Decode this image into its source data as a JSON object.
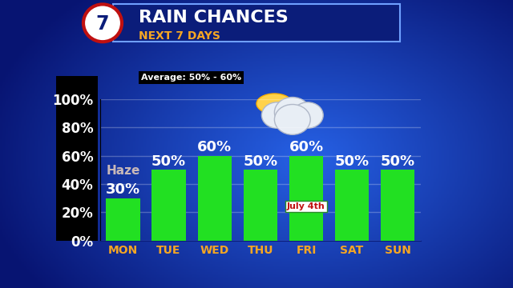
{
  "chart_data": {
    "type": "bar",
    "title": "RAIN CHANCES",
    "subtitle": "NEXT 7 DAYS",
    "categories": [
      "MON",
      "TUE",
      "WED",
      "THU",
      "FRI",
      "SAT",
      "SUN"
    ],
    "values": [
      30,
      50,
      60,
      50,
      60,
      50,
      50
    ],
    "value_labels": [
      "30%",
      "50%",
      "60%",
      "50%",
      "60%",
      "50%",
      "50%"
    ],
    "data_labels": true,
    "color": "#22e022",
    "ylim": [
      0,
      100
    ],
    "yticks": [
      {
        "value": 0,
        "label": "0%"
      },
      {
        "value": 20,
        "label": "20%"
      },
      {
        "value": 40,
        "label": "40%"
      },
      {
        "value": 60,
        "label": "60%"
      },
      {
        "value": 80,
        "label": "80%"
      },
      {
        "value": 100,
        "label": "100%"
      }
    ],
    "grid": true,
    "annotations": [
      {
        "text": "7"
      },
      {
        "text": "Average: 50% - 60%"
      },
      {
        "text": "Haze",
        "category": "MON"
      },
      {
        "text": "July 4th",
        "category": "FRI"
      }
    ]
  }
}
